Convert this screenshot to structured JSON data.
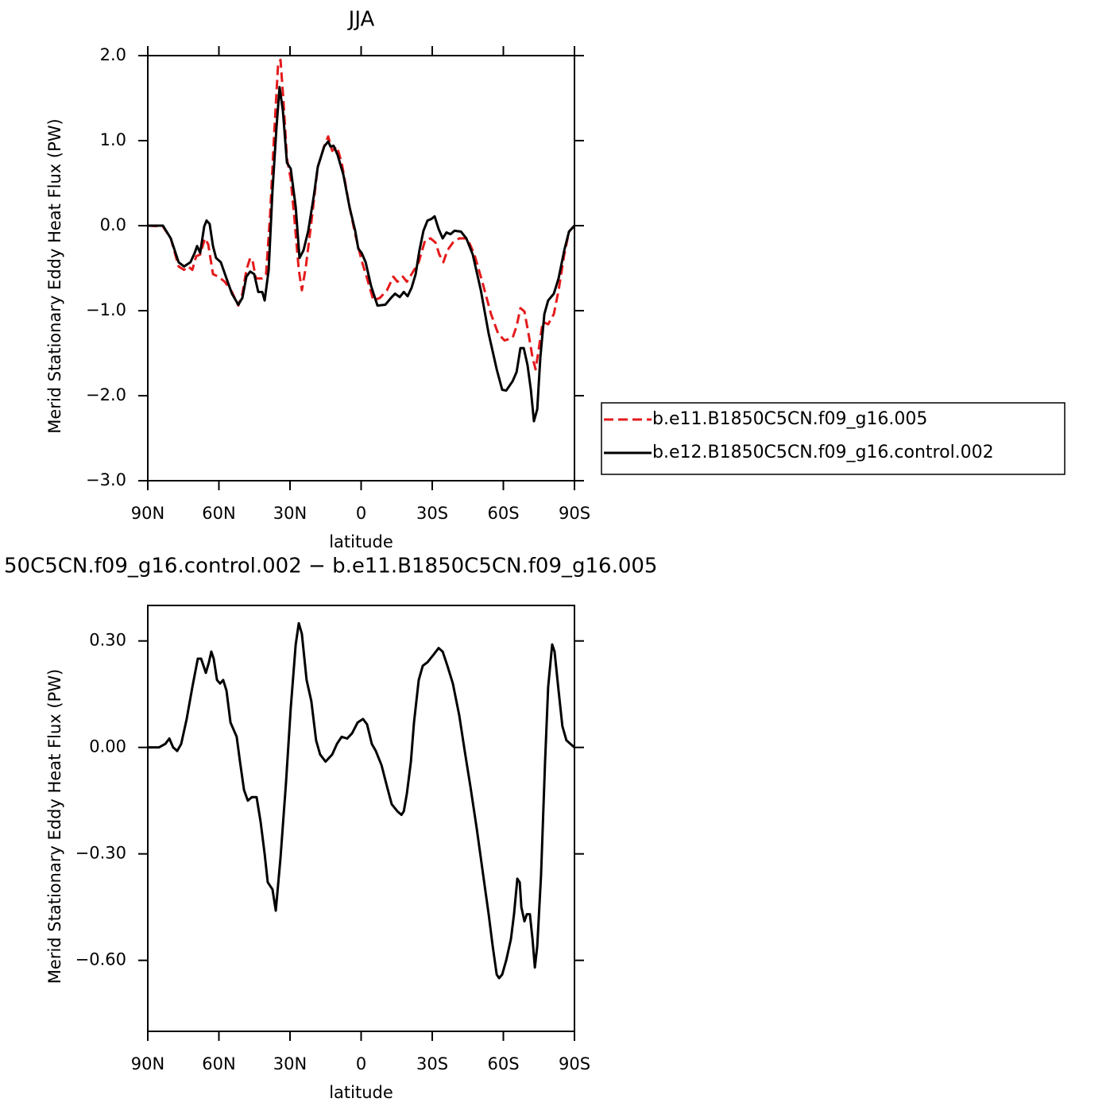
{
  "chart_data": [
    {
      "type": "line",
      "title": "JJA",
      "x_label": "latitude",
      "y_label": "Merid Stationary Eddy Heat Flux (PW)",
      "xlim": [
        90,
        -90
      ],
      "xticks": [
        {
          "value": 90,
          "label": "90N"
        },
        {
          "value": 60,
          "label": "60N"
        },
        {
          "value": 30,
          "label": "30N"
        },
        0,
        {
          "value": -30,
          "label": "30S"
        },
        {
          "value": -60,
          "label": "60S"
        },
        {
          "value": -90,
          "label": "90S"
        }
      ],
      "ylim": [
        -3,
        2
      ],
      "yticks": [
        {
          "value": 2,
          "label": "2.0"
        },
        {
          "value": 1,
          "label": "1.0"
        },
        {
          "value": 0,
          "label": "0.0"
        },
        {
          "value": -1,
          "label": "−1.0"
        },
        {
          "value": -2,
          "label": "−2.0"
        },
        {
          "value": -3,
          "label": "−3.0"
        }
      ],
      "legend": "right",
      "series": [
        {
          "name": "b.e11.B1850C5CN.f09_g16.005",
          "color": "#e41a1c",
          "linestyle": "dashed",
          "x": [
            90,
            83.6,
            80.3,
            77,
            74.7,
            73,
            71.2,
            69.6,
            67.9,
            65.9,
            64.5,
            62.5,
            60.2,
            57.5,
            54.5,
            51.8,
            50.1,
            48.4,
            46.8,
            45.8,
            44.4,
            41.7,
            40.1,
            38.4,
            36.7,
            35,
            34,
            32.7,
            31.3,
            29.7,
            28.3,
            26.3,
            25,
            23.3,
            21,
            18.3,
            15.6,
            13.9,
            12.2,
            10.2,
            8.2,
            4.9,
            2.5,
            -0.2,
            -2.5,
            -5.2,
            -7.9,
            -10.9,
            -13.6,
            -15.3,
            -17.6,
            -19.3,
            -21.3,
            -24.3,
            -27,
            -29.3,
            -31.4,
            -33,
            -34.7,
            -36.4,
            -38.7,
            -41.4,
            -44.8,
            -47.8,
            -51.1,
            -54.8,
            -57.8,
            -60.5,
            -63.9,
            -65.6,
            -67.2,
            -68.9,
            -70.6,
            -72.3,
            -73.6,
            -74.9,
            -76.6,
            -78.9,
            -81.3,
            -83.3,
            -85.7,
            -87.7,
            -90
          ],
          "values": [
            0,
            -0.01,
            -0.15,
            -0.48,
            -0.52,
            -0.48,
            -0.52,
            -0.36,
            -0.34,
            -0.15,
            -0.22,
            -0.57,
            -0.6,
            -0.66,
            -0.78,
            -0.94,
            -0.8,
            -0.52,
            -0.38,
            -0.41,
            -0.62,
            -0.62,
            -0.57,
            0.13,
            1.07,
            1.91,
            1.95,
            1.44,
            0.79,
            0.55,
            0.13,
            -0.52,
            -0.76,
            -0.48,
            0.04,
            0.69,
            0.93,
            1.05,
            0.88,
            0.93,
            0.74,
            0.22,
            -0.1,
            -0.41,
            -0.62,
            -0.88,
            -0.85,
            -0.76,
            -0.6,
            -0.66,
            -0.6,
            -0.66,
            -0.57,
            -0.43,
            -0.17,
            -0.15,
            -0.2,
            -0.34,
            -0.43,
            -0.29,
            -0.2,
            -0.15,
            -0.15,
            -0.34,
            -0.66,
            -1.04,
            -1.27,
            -1.35,
            -1.32,
            -1.18,
            -0.97,
            -1.01,
            -1.27,
            -1.55,
            -1.69,
            -1.46,
            -1.13,
            -1.16,
            -1.04,
            -0.76,
            -0.34,
            -0.07,
            0
          ]
        },
        {
          "name": "b.e12.B1850C5CN.f09_g16.control.002",
          "color": "#000000",
          "linestyle": "solid",
          "x": [
            90,
            83.6,
            80.3,
            77,
            74.7,
            72,
            70.2,
            69.2,
            67.9,
            66.2,
            65.2,
            63.9,
            62.5,
            61.2,
            59.2,
            56.8,
            54.5,
            51.8,
            50.1,
            48.4,
            46.8,
            45.1,
            43.4,
            41.7,
            40.7,
            39,
            37.4,
            35.7,
            34.4,
            33,
            31.3,
            29.7,
            27.6,
            26,
            24.3,
            22.3,
            19.9,
            18.3,
            15.6,
            13.9,
            12.9,
            11.6,
            9.9,
            7.5,
            4.9,
            2.5,
            1.2,
            -0.2,
            -1.9,
            -4.2,
            -6.9,
            -10.2,
            -12.6,
            -14.3,
            -16.3,
            -18,
            -19.6,
            -21.3,
            -23,
            -24.6,
            -26.3,
            -28,
            -29.7,
            -31,
            -32.7,
            -34.4,
            -36,
            -37.7,
            -39.4,
            -42.1,
            -44.4,
            -47.1,
            -50.5,
            -53.8,
            -57.2,
            -59.5,
            -61.2,
            -63.9,
            -65.6,
            -67.2,
            -68.6,
            -70.2,
            -71.6,
            -72.9,
            -74.3,
            -75.6,
            -77.3,
            -78.9,
            -81.3,
            -83.3,
            -85.7,
            -87.7,
            -90
          ],
          "values": [
            0,
            0,
            -0.15,
            -0.43,
            -0.48,
            -0.43,
            -0.32,
            -0.24,
            -0.32,
            -0.01,
            0.06,
            0.02,
            -0.24,
            -0.38,
            -0.43,
            -0.62,
            -0.8,
            -0.93,
            -0.85,
            -0.6,
            -0.54,
            -0.57,
            -0.78,
            -0.78,
            -0.88,
            -0.52,
            0.41,
            1.16,
            1.63,
            1.35,
            0.74,
            0.67,
            0.22,
            -0.38,
            -0.29,
            -0.06,
            0.36,
            0.69,
            0.93,
            0.99,
            0.93,
            0.94,
            0.83,
            0.6,
            0.22,
            -0.06,
            -0.27,
            -0.32,
            -0.43,
            -0.71,
            -0.94,
            -0.93,
            -0.85,
            -0.8,
            -0.84,
            -0.78,
            -0.83,
            -0.73,
            -0.57,
            -0.29,
            -0.06,
            0.06,
            0.08,
            0.11,
            -0.04,
            -0.15,
            -0.08,
            -0.1,
            -0.06,
            -0.07,
            -0.15,
            -0.34,
            -0.76,
            -1.27,
            -1.69,
            -1.93,
            -1.94,
            -1.83,
            -1.72,
            -1.44,
            -1.44,
            -1.64,
            -1.93,
            -2.3,
            -2.16,
            -1.55,
            -1.04,
            -0.88,
            -0.8,
            -0.62,
            -0.29,
            -0.07,
            0
          ]
        }
      ]
    },
    {
      "type": "line",
      "title": "50C5CN.f09_g16.control.002 − b.e11.B1850C5CN.f09_g16.005",
      "x_label": "latitude",
      "y_label": "Merid Stationary Eddy Heat Flux (PW)",
      "xlim": [
        90,
        -90
      ],
      "xticks": [
        {
          "value": 90,
          "label": "90N"
        },
        {
          "value": 60,
          "label": "60N"
        },
        {
          "value": 30,
          "label": "30N"
        },
        0,
        {
          "value": -30,
          "label": "30S"
        },
        {
          "value": -60,
          "label": "60S"
        },
        {
          "value": -90,
          "label": "90S"
        }
      ],
      "ylim": [
        -0.8,
        0.4
      ],
      "yticks": [
        {
          "value": 0.3,
          "label": "0.30"
        },
        {
          "value": 0,
          "label": "0.00"
        },
        {
          "value": -0.3,
          "label": "−0.30"
        },
        {
          "value": -0.6,
          "label": "−0.60"
        }
      ],
      "series": [
        {
          "color": "#000000",
          "linestyle": "solid",
          "x": [
            90,
            85.3,
            82.6,
            80.9,
            79.3,
            77.6,
            75.9,
            73.6,
            71.2,
            68.9,
            67.5,
            65.5,
            64.2,
            63.2,
            62.2,
            60.8,
            59.5,
            58.2,
            56.8,
            55.1,
            53.8,
            52.5,
            51.1,
            49.4,
            47.8,
            46.1,
            44.1,
            42.4,
            40.7,
            39.4,
            37.4,
            36,
            34,
            31.7,
            29.7,
            27.6,
            26.3,
            25,
            23,
            21,
            19,
            17.3,
            15,
            12.2,
            10.2,
            8.2,
            5.9,
            3.8,
            1.5,
            -0.8,
            -2.5,
            -4.5,
            -6.2,
            -8.6,
            -10.9,
            -12.9,
            -15.3,
            -17,
            -18,
            -19.3,
            -21,
            -22.3,
            -24.3,
            -26,
            -28,
            -30.4,
            -32.7,
            -34.4,
            -36.4,
            -38.7,
            -41.4,
            -43.7,
            -46.1,
            -48.8,
            -51.5,
            -53.8,
            -55.5,
            -57.2,
            -58.2,
            -59.5,
            -61.2,
            -63.2,
            -64.5,
            -65.9,
            -66.9,
            -67.6,
            -68.9,
            -69.9,
            -71.2,
            -72.3,
            -73.3,
            -74.3,
            -75.9,
            -77.6,
            -78.9,
            -80.6,
            -81.6,
            -83.3,
            -84.9,
            -86.6,
            -88.3,
            -90
          ],
          "values": [
            0,
            0,
            0.01,
            0.025,
            0,
            -0.01,
            0.01,
            0.08,
            0.17,
            0.25,
            0.25,
            0.21,
            0.24,
            0.27,
            0.25,
            0.19,
            0.18,
            0.19,
            0.16,
            0.07,
            0.05,
            0.03,
            -0.04,
            -0.12,
            -0.15,
            -0.14,
            -0.14,
            -0.21,
            -0.3,
            -0.38,
            -0.4,
            -0.46,
            -0.31,
            -0.1,
            0.11,
            0.29,
            0.35,
            0.32,
            0.19,
            0.13,
            0.02,
            -0.02,
            -0.04,
            -0.02,
            0.01,
            0.03,
            0.025,
            0.04,
            0.07,
            0.08,
            0.065,
            0.01,
            -0.01,
            -0.05,
            -0.11,
            -0.16,
            -0.18,
            -0.19,
            -0.18,
            -0.13,
            -0.04,
            0.07,
            0.19,
            0.23,
            0.24,
            0.26,
            0.28,
            0.27,
            0.23,
            0.18,
            0.09,
            -0.01,
            -0.11,
            -0.23,
            -0.36,
            -0.47,
            -0.56,
            -0.64,
            -0.65,
            -0.64,
            -0.6,
            -0.54,
            -0.47,
            -0.37,
            -0.38,
            -0.45,
            -0.49,
            -0.47,
            -0.47,
            -0.54,
            -0.62,
            -0.56,
            -0.36,
            -0.04,
            0.17,
            0.29,
            0.27,
            0.16,
            0.06,
            0.02,
            0.01,
            0
          ]
        }
      ]
    }
  ]
}
